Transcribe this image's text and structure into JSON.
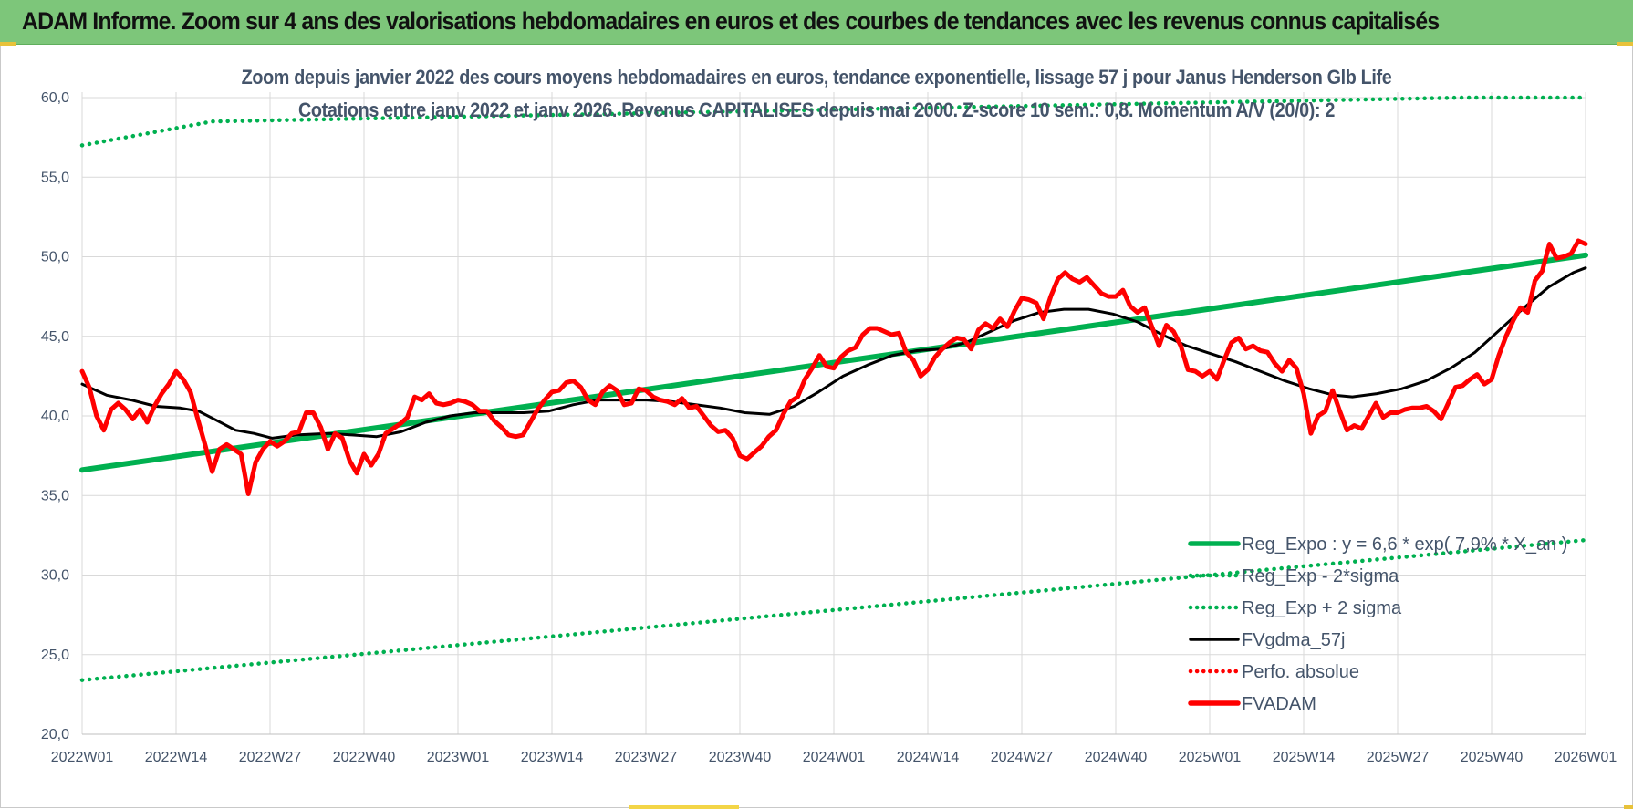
{
  "banner": {
    "title": "ADAM Informe. Zoom sur 4 ans des valorisations hebdomadaires en euros et des courbes de tendances avec les revenus connus capitalisés"
  },
  "colors": {
    "banner": "#7dc67a",
    "trend": "#00b050",
    "fvadam": "#ff0000",
    "fvgdma": "#000000",
    "text": "#44546a",
    "grid": "#d9d9d9"
  },
  "chart_data": {
    "type": "line",
    "title": "Zoom depuis janvier 2022 des cours moyens hebdomadaires en euros, tendance exponentielle, lissage 57 j pour Janus Henderson Glb Life",
    "subtitle": "Cotations entre janv 2022 et janv 2026. Revenus CAPITALISES depuis mai 2000. Z-score 10 sem.: 0,8. Momentum A/V (20/0): 2",
    "xlabel": "",
    "ylabel": "",
    "ylim": [
      20,
      60
    ],
    "y_ticks": [
      "20,0",
      "25,0",
      "30,0",
      "35,0",
      "40,0",
      "45,0",
      "50,0",
      "55,0",
      "60,0"
    ],
    "x_ticks": [
      "2022W01",
      "2022W14",
      "2022W27",
      "2022W40",
      "2023W01",
      "2023W14",
      "2023W27",
      "2023W40",
      "2024W01",
      "2024W14",
      "2024W27",
      "2024W40",
      "2025W01",
      "2025W14",
      "2025W27",
      "2025W40",
      "2026W01"
    ],
    "grid": true,
    "legend_position": "bottom-right",
    "series": [
      {
        "name": "Reg_Expo : y = 6,6 * exp( 7,9% * X_an )",
        "style": "solid",
        "color": "#00b050",
        "points": [
          [
            0,
            36.6
          ],
          [
            208,
            50.1
          ]
        ]
      },
      {
        "name": "Reg_Exp - 2*sigma",
        "style": "dotted",
        "color": "#00b050",
        "points": [
          [
            0,
            23.4
          ],
          [
            208,
            32.2
          ]
        ]
      },
      {
        "name": "Reg_Exp + 2 sigma",
        "style": "dotted",
        "color": "#00b050",
        "points": [
          [
            0,
            57.0
          ],
          [
            18,
            58.5
          ],
          [
            191,
            60.0
          ],
          [
            208,
            60.0
          ]
        ]
      },
      {
        "name": "FVgdma_57j",
        "style": "solid",
        "color": "#000000",
        "points": [
          [
            0,
            42.0
          ],
          [
            4,
            41.3
          ],
          [
            8,
            41.0
          ],
          [
            12,
            40.6
          ],
          [
            16,
            40.5
          ],
          [
            19,
            40.3
          ],
          [
            22,
            39.7
          ],
          [
            25,
            39.1
          ],
          [
            28,
            38.9
          ],
          [
            31,
            38.6
          ],
          [
            35,
            38.8
          ],
          [
            40,
            38.9
          ],
          [
            44,
            38.8
          ],
          [
            48,
            38.7
          ],
          [
            52,
            39.0
          ],
          [
            56,
            39.6
          ],
          [
            60,
            40.0
          ],
          [
            64,
            40.2
          ],
          [
            68,
            40.2
          ],
          [
            72,
            40.2
          ],
          [
            76,
            40.3
          ],
          [
            80,
            40.7
          ],
          [
            84,
            41.0
          ],
          [
            88,
            41.0
          ],
          [
            92,
            41.0
          ],
          [
            96,
            40.9
          ],
          [
            100,
            40.7
          ],
          [
            104,
            40.5
          ],
          [
            108,
            40.2
          ],
          [
            112,
            40.1
          ],
          [
            116,
            40.6
          ],
          [
            120,
            41.5
          ],
          [
            124,
            42.5
          ],
          [
            128,
            43.2
          ],
          [
            132,
            43.8
          ],
          [
            136,
            44.1
          ],
          [
            140,
            44.2
          ],
          [
            144,
            44.6
          ],
          [
            148,
            45.3
          ],
          [
            152,
            46.0
          ],
          [
            156,
            46.5
          ],
          [
            160,
            46.7
          ],
          [
            164,
            46.7
          ],
          [
            168,
            46.4
          ],
          [
            172,
            45.9
          ],
          [
            176,
            45.1
          ],
          [
            180,
            44.4
          ],
          [
            184,
            43.9
          ],
          [
            188,
            43.4
          ],
          [
            192,
            42.8
          ],
          [
            196,
            42.2
          ],
          [
            200,
            41.7
          ],
          [
            204,
            41.3
          ],
          [
            207,
            41.2
          ],
          [
            211,
            41.4
          ],
          [
            215,
            41.7
          ],
          [
            219,
            42.2
          ],
          [
            223,
            43.0
          ],
          [
            227,
            44.0
          ],
          [
            231,
            45.4
          ],
          [
            235,
            46.8
          ],
          [
            239,
            48.1
          ],
          [
            243,
            49.0
          ],
          [
            245,
            49.3
          ]
        ]
      },
      {
        "name": "Perfo. absolue",
        "style": "dotted",
        "color": "#ff0000",
        "points": []
      },
      {
        "name": "FVADAM",
        "style": "solid",
        "color": "#ff0000",
        "points": [
          [
            0,
            42.8
          ],
          [
            1,
            41.8
          ],
          [
            2,
            40.0
          ],
          [
            3,
            39.1
          ],
          [
            4,
            40.4
          ],
          [
            5,
            40.8
          ],
          [
            6,
            40.4
          ],
          [
            7,
            39.8
          ],
          [
            8,
            40.4
          ],
          [
            9,
            39.6
          ],
          [
            10,
            40.6
          ],
          [
            11,
            41.4
          ],
          [
            12,
            42.0
          ],
          [
            13,
            42.8
          ],
          [
            14,
            42.3
          ],
          [
            15,
            41.5
          ],
          [
            16,
            39.8
          ],
          [
            17,
            38.2
          ],
          [
            18,
            36.5
          ],
          [
            19,
            37.9
          ],
          [
            20,
            38.2
          ],
          [
            21,
            37.9
          ],
          [
            22,
            37.6
          ],
          [
            23,
            35.1
          ],
          [
            24,
            37.1
          ],
          [
            25,
            37.9
          ],
          [
            26,
            38.4
          ],
          [
            27,
            38.1
          ],
          [
            28,
            38.4
          ],
          [
            29,
            38.9
          ],
          [
            30,
            39.0
          ],
          [
            31,
            40.2
          ],
          [
            32,
            40.2
          ],
          [
            33,
            39.3
          ],
          [
            34,
            37.9
          ],
          [
            35,
            38.9
          ],
          [
            36,
            38.6
          ],
          [
            37,
            37.2
          ],
          [
            38,
            36.4
          ],
          [
            39,
            37.6
          ],
          [
            40,
            36.9
          ],
          [
            41,
            37.6
          ],
          [
            42,
            38.9
          ],
          [
            43,
            39.2
          ],
          [
            44,
            39.5
          ],
          [
            45,
            39.9
          ],
          [
            46,
            41.2
          ],
          [
            47,
            41.0
          ],
          [
            48,
            41.4
          ],
          [
            49,
            40.8
          ],
          [
            50,
            40.7
          ],
          [
            51,
            40.8
          ],
          [
            52,
            41.0
          ],
          [
            53,
            40.9
          ],
          [
            54,
            40.7
          ],
          [
            55,
            40.3
          ],
          [
            56,
            40.3
          ],
          [
            57,
            39.7
          ],
          [
            58,
            39.3
          ],
          [
            59,
            38.8
          ],
          [
            60,
            38.7
          ],
          [
            61,
            38.8
          ],
          [
            62,
            39.6
          ],
          [
            63,
            40.4
          ],
          [
            64,
            41.0
          ],
          [
            65,
            41.5
          ],
          [
            66,
            41.6
          ],
          [
            67,
            42.1
          ],
          [
            68,
            42.2
          ],
          [
            69,
            41.8
          ],
          [
            70,
            41.0
          ],
          [
            71,
            40.7
          ],
          [
            72,
            41.5
          ],
          [
            73,
            41.9
          ],
          [
            74,
            41.6
          ],
          [
            75,
            40.7
          ],
          [
            76,
            40.8
          ],
          [
            77,
            41.7
          ],
          [
            78,
            41.6
          ],
          [
            79,
            41.2
          ],
          [
            80,
            41.0
          ],
          [
            81,
            40.9
          ],
          [
            82,
            40.7
          ],
          [
            83,
            41.1
          ],
          [
            84,
            40.5
          ],
          [
            85,
            40.6
          ],
          [
            86,
            40.0
          ],
          [
            87,
            39.4
          ],
          [
            88,
            39.0
          ],
          [
            89,
            39.1
          ],
          [
            90,
            38.6
          ],
          [
            91,
            37.5
          ],
          [
            92,
            37.3
          ],
          [
            93,
            37.7
          ],
          [
            94,
            38.1
          ],
          [
            95,
            38.7
          ],
          [
            96,
            39.1
          ],
          [
            97,
            40.1
          ],
          [
            98,
            40.9
          ],
          [
            99,
            41.2
          ],
          [
            100,
            42.3
          ],
          [
            101,
            43.0
          ],
          [
            102,
            43.8
          ],
          [
            103,
            43.1
          ],
          [
            104,
            43.0
          ],
          [
            105,
            43.7
          ],
          [
            106,
            44.1
          ],
          [
            107,
            44.3
          ],
          [
            108,
            45.1
          ],
          [
            109,
            45.5
          ],
          [
            110,
            45.5
          ],
          [
            111,
            45.3
          ],
          [
            112,
            45.1
          ],
          [
            113,
            45.2
          ],
          [
            114,
            44.0
          ],
          [
            115,
            43.5
          ],
          [
            116,
            42.5
          ],
          [
            117,
            42.9
          ],
          [
            118,
            43.7
          ],
          [
            119,
            44.2
          ],
          [
            120,
            44.6
          ],
          [
            121,
            44.9
          ],
          [
            122,
            44.8
          ],
          [
            123,
            44.2
          ],
          [
            124,
            45.4
          ],
          [
            125,
            45.8
          ],
          [
            126,
            45.5
          ],
          [
            127,
            46.1
          ],
          [
            128,
            45.6
          ],
          [
            129,
            46.6
          ],
          [
            130,
            47.4
          ],
          [
            131,
            47.3
          ],
          [
            132,
            47.1
          ],
          [
            133,
            46.1
          ],
          [
            134,
            47.5
          ],
          [
            135,
            48.6
          ],
          [
            136,
            49.0
          ],
          [
            137,
            48.6
          ],
          [
            138,
            48.4
          ],
          [
            139,
            48.7
          ],
          [
            140,
            48.2
          ],
          [
            141,
            47.7
          ],
          [
            142,
            47.5
          ],
          [
            143,
            47.5
          ],
          [
            144,
            47.9
          ],
          [
            145,
            46.9
          ],
          [
            146,
            46.5
          ],
          [
            147,
            46.8
          ],
          [
            148,
            45.6
          ],
          [
            149,
            44.4
          ],
          [
            150,
            45.7
          ],
          [
            151,
            45.3
          ],
          [
            152,
            44.4
          ],
          [
            153,
            42.9
          ],
          [
            154,
            42.8
          ],
          [
            155,
            42.5
          ],
          [
            156,
            42.8
          ],
          [
            157,
            42.3
          ],
          [
            158,
            43.5
          ],
          [
            159,
            44.6
          ],
          [
            160,
            44.9
          ],
          [
            161,
            44.2
          ],
          [
            162,
            44.4
          ],
          [
            163,
            44.1
          ],
          [
            164,
            44.0
          ],
          [
            165,
            43.3
          ],
          [
            166,
            42.8
          ],
          [
            167,
            43.5
          ],
          [
            168,
            43.0
          ],
          [
            169,
            41.4
          ],
          [
            170,
            38.9
          ],
          [
            171,
            40.0
          ],
          [
            172,
            40.3
          ],
          [
            173,
            41.6
          ],
          [
            174,
            40.3
          ],
          [
            175,
            39.1
          ],
          [
            176,
            39.4
          ],
          [
            177,
            39.2
          ],
          [
            178,
            40.0
          ],
          [
            179,
            40.8
          ],
          [
            180,
            39.9
          ],
          [
            181,
            40.2
          ],
          [
            182,
            40.2
          ],
          [
            183,
            40.4
          ],
          [
            184,
            40.5
          ],
          [
            185,
            40.5
          ],
          [
            186,
            40.6
          ],
          [
            187,
            40.3
          ],
          [
            188,
            39.8
          ],
          [
            189,
            40.8
          ],
          [
            190,
            41.8
          ],
          [
            191,
            41.9
          ],
          [
            192,
            42.3
          ],
          [
            193,
            42.6
          ],
          [
            194,
            42.0
          ],
          [
            195,
            42.3
          ],
          [
            196,
            43.8
          ],
          [
            197,
            45.0
          ],
          [
            198,
            46.0
          ],
          [
            199,
            46.8
          ],
          [
            200,
            46.5
          ],
          [
            201,
            48.5
          ],
          [
            202,
            49.1
          ],
          [
            203,
            50.8
          ],
          [
            204,
            49.9
          ],
          [
            205,
            50.0
          ],
          [
            206,
            50.2
          ],
          [
            207,
            51.0
          ],
          [
            208,
            50.8
          ]
        ]
      }
    ]
  }
}
